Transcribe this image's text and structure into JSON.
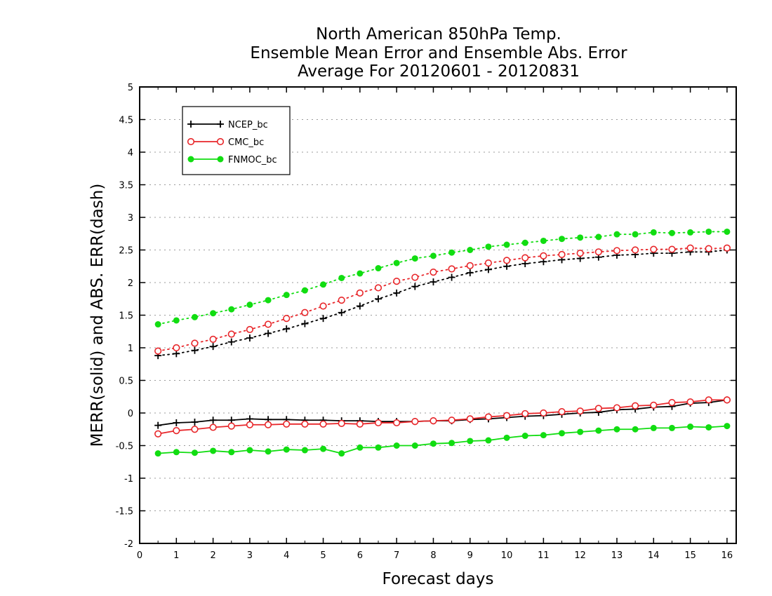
{
  "chart_data": {
    "type": "line",
    "title": [
      "North American 850hPa Temp.",
      "Ensemble Mean Error and Ensemble Abs. Error",
      "Average For 20120601 - 20120831"
    ],
    "xlabel": "Forecast days",
    "ylabel": "MERR(solid) and ABS. ERR(dash)",
    "xlim": [
      0,
      16.25
    ],
    "ylim": [
      -2,
      5
    ],
    "xticks": [
      0,
      1,
      2,
      3,
      4,
      5,
      6,
      7,
      8,
      9,
      10,
      11,
      12,
      13,
      14,
      15,
      16
    ],
    "yticks": [
      -2,
      -1.5,
      -1,
      -0.5,
      0,
      0.5,
      1,
      1.5,
      2,
      2.5,
      3,
      3.5,
      4,
      4.5,
      5
    ],
    "ytick_labels": [
      "-2",
      "-1.5",
      "-1",
      "-0.5",
      "0",
      "0.5",
      "1",
      "1.5",
      "2",
      "2.5",
      "3",
      "3.5",
      "4",
      "4.5",
      "5"
    ],
    "grid": "horizontal dotted",
    "legend_position": "top-left",
    "x": [
      0.5,
      1,
      1.5,
      2,
      2.5,
      3,
      3.5,
      4,
      4.5,
      5,
      5.5,
      6,
      6.5,
      7,
      7.5,
      8,
      8.5,
      9,
      9.5,
      10,
      10.5,
      11,
      11.5,
      12,
      12.5,
      13,
      13.5,
      14,
      14.5,
      15,
      15.5,
      16
    ],
    "series": [
      {
        "name": "NCEP_bc",
        "color": "#000000",
        "marker": "plus",
        "merr": [
          -0.19,
          -0.15,
          -0.14,
          -0.11,
          -0.11,
          -0.09,
          -0.1,
          -0.1,
          -0.11,
          -0.11,
          -0.12,
          -0.12,
          -0.13,
          -0.13,
          -0.13,
          -0.12,
          -0.12,
          -0.1,
          -0.09,
          -0.07,
          -0.05,
          -0.04,
          -0.02,
          0.0,
          0.01,
          0.05,
          0.06,
          0.09,
          0.1,
          0.15,
          0.16,
          0.2
        ],
        "abs_err": [
          0.88,
          0.91,
          0.96,
          1.02,
          1.09,
          1.15,
          1.22,
          1.29,
          1.37,
          1.45,
          1.54,
          1.64,
          1.75,
          1.84,
          1.94,
          2.01,
          2.08,
          2.15,
          2.2,
          2.25,
          2.29,
          2.32,
          2.35,
          2.37,
          2.39,
          2.42,
          2.43,
          2.45,
          2.45,
          2.47,
          2.47,
          2.5
        ]
      },
      {
        "name": "CMC_bc",
        "color": "#e8262a",
        "marker": "open-circle",
        "merr": [
          -0.32,
          -0.27,
          -0.25,
          -0.22,
          -0.2,
          -0.18,
          -0.18,
          -0.17,
          -0.17,
          -0.17,
          -0.16,
          -0.17,
          -0.15,
          -0.15,
          -0.13,
          -0.12,
          -0.11,
          -0.09,
          -0.06,
          -0.04,
          -0.01,
          0.0,
          0.02,
          0.03,
          0.07,
          0.08,
          0.11,
          0.12,
          0.16,
          0.17,
          0.2,
          0.2
        ],
        "abs_err": [
          0.95,
          1.0,
          1.07,
          1.13,
          1.21,
          1.28,
          1.36,
          1.45,
          1.54,
          1.64,
          1.73,
          1.84,
          1.92,
          2.02,
          2.08,
          2.16,
          2.21,
          2.26,
          2.3,
          2.34,
          2.38,
          2.41,
          2.43,
          2.45,
          2.47,
          2.49,
          2.5,
          2.51,
          2.51,
          2.53,
          2.52,
          2.53
        ]
      },
      {
        "name": "FNMOC_bc",
        "color": "#11dd11",
        "marker": "filled-circle",
        "merr": [
          -0.62,
          -0.6,
          -0.61,
          -0.58,
          -0.6,
          -0.57,
          -0.59,
          -0.56,
          -0.57,
          -0.55,
          -0.62,
          -0.53,
          -0.53,
          -0.5,
          -0.5,
          -0.47,
          -0.46,
          -0.43,
          -0.42,
          -0.38,
          -0.35,
          -0.34,
          -0.31,
          -0.29,
          -0.27,
          -0.25,
          -0.25,
          -0.23,
          -0.23,
          -0.21,
          -0.22,
          -0.2
        ],
        "abs_err": [
          1.36,
          1.42,
          1.47,
          1.53,
          1.59,
          1.66,
          1.73,
          1.81,
          1.88,
          1.97,
          2.07,
          2.14,
          2.22,
          2.3,
          2.37,
          2.41,
          2.46,
          2.5,
          2.55,
          2.58,
          2.61,
          2.64,
          2.67,
          2.69,
          2.7,
          2.74,
          2.74,
          2.77,
          2.76,
          2.77,
          2.78,
          2.78
        ]
      }
    ]
  }
}
